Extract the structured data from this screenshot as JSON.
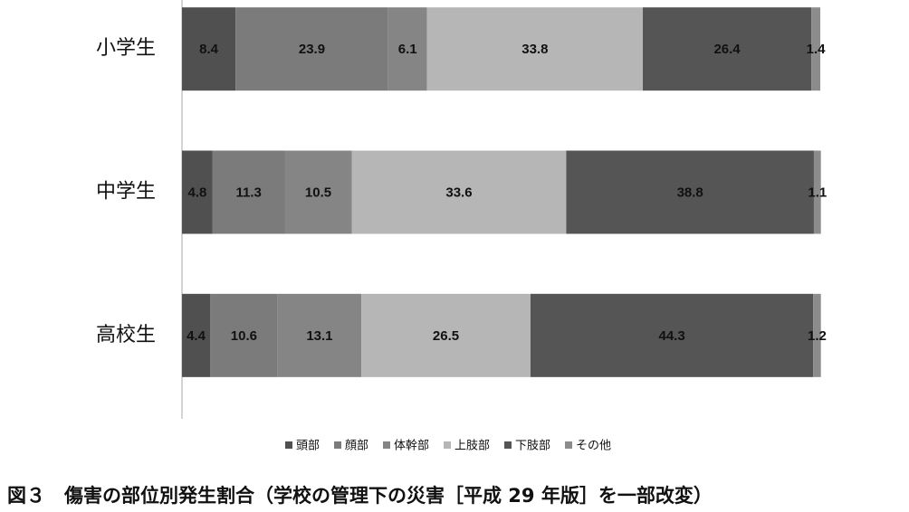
{
  "chart_data": {
    "type": "stacked_barh",
    "categories": [
      "小学生",
      "中学生",
      "高校生"
    ],
    "series": [
      {
        "name": "頭部",
        "color": "#505050",
        "values": [
          8.4,
          4.8,
          4.4
        ]
      },
      {
        "name": "顔部",
        "color": "#7b7b7b",
        "values": [
          23.9,
          11.3,
          10.6
        ]
      },
      {
        "name": "体幹部",
        "color": "#858585",
        "values": [
          6.1,
          10.5,
          13.1
        ]
      },
      {
        "name": "上肢部",
        "color": "#b6b6b6",
        "values": [
          33.8,
          33.6,
          26.5
        ]
      },
      {
        "name": "下肢部",
        "color": "#555555",
        "values": [
          26.4,
          38.8,
          44.3
        ]
      },
      {
        "name": "その他",
        "color": "#8c8c8c",
        "values": [
          1.4,
          1.1,
          1.2
        ]
      }
    ],
    "xlim": [
      0,
      100
    ],
    "legend": "bottom",
    "caption": "図３　傷害の部位別発生割合（学校の管理下の災害［平成 29 年版］を一部改変）"
  }
}
